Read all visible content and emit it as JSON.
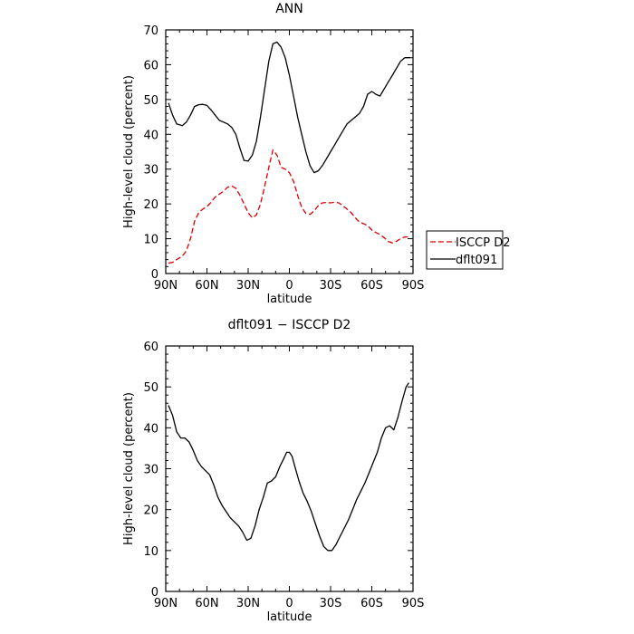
{
  "chart_data": [
    {
      "type": "line",
      "title": "ANN",
      "xlabel": "latitude",
      "ylabel": "High-level cloud (percent)",
      "xlim": [
        90,
        -90
      ],
      "ylim": [
        0,
        70
      ],
      "x_ticks": [
        90,
        60,
        30,
        0,
        -30,
        -60,
        -90
      ],
      "x_tick_labels": [
        "90N",
        "60N",
        "30N",
        "0",
        "30S",
        "60S",
        "90S"
      ],
      "y_ticks": [
        0,
        10,
        20,
        30,
        40,
        50,
        60,
        70
      ],
      "y_tick_labels": [
        "0",
        "10",
        "20",
        "30",
        "40",
        "50",
        "60",
        "70"
      ],
      "legend": {
        "position": "right",
        "entries": [
          "ISCCP D2",
          "dflt091"
        ]
      },
      "series": [
        {
          "name": "ISCCP D2",
          "color": "#e00000",
          "style": "dashed",
          "x": [
            88,
            85,
            82,
            78,
            75,
            72,
            69,
            66,
            63,
            60,
            57,
            54,
            51,
            48,
            45,
            42,
            39,
            36,
            33,
            30,
            27,
            24,
            21,
            18,
            15,
            12,
            9,
            6,
            3,
            0,
            -3,
            -6,
            -9,
            -12,
            -15,
            -18,
            -21,
            -24,
            -27,
            -30,
            -33,
            -36,
            -39,
            -42,
            -45,
            -48,
            -51,
            -54,
            -57,
            -60,
            -63,
            -66,
            -69,
            -72,
            -75,
            -78,
            -81,
            -84,
            -86,
            -88
          ],
          "y": [
            3.0,
            3.2,
            4.0,
            5.0,
            6.5,
            10.0,
            15.0,
            17.5,
            18.5,
            19.2,
            20.5,
            22.0,
            22.8,
            23.6,
            24.8,
            25.2,
            24.5,
            22.5,
            20.0,
            17.5,
            16.0,
            16.8,
            20.0,
            25.0,
            30.5,
            35.5,
            34.0,
            30.5,
            30.0,
            29.0,
            26.5,
            22.5,
            19.0,
            17.3,
            17.0,
            18.0,
            19.5,
            20.3,
            20.4,
            20.3,
            20.5,
            20.3,
            19.5,
            18.5,
            17.5,
            16.0,
            14.8,
            14.3,
            13.8,
            12.5,
            11.8,
            11.2,
            10.3,
            9.2,
            8.8,
            9.3,
            10.0,
            10.5,
            10.5,
            10.5
          ]
        },
        {
          "name": "dflt091",
          "color": "#000000",
          "style": "solid",
          "x": [
            88,
            85,
            82,
            78,
            75,
            72,
            69,
            66,
            63,
            60,
            57,
            54,
            51,
            48,
            45,
            42,
            39,
            36,
            33,
            30,
            27,
            24,
            21,
            18,
            15,
            12,
            9,
            6,
            3,
            0,
            -3,
            -6,
            -9,
            -12,
            -15,
            -18,
            -21,
            -24,
            -27,
            -30,
            -33,
            -36,
            -39,
            -42,
            -45,
            -48,
            -51,
            -54,
            -57,
            -60,
            -63,
            -66,
            -69,
            -72,
            -75,
            -78,
            -81,
            -84,
            -86,
            -88
          ],
          "y": [
            49.0,
            45.5,
            43.0,
            42.5,
            43.5,
            45.5,
            48.0,
            48.5,
            48.6,
            48.3,
            47.0,
            45.5,
            44.0,
            43.5,
            43.0,
            42.0,
            40.0,
            36.0,
            32.5,
            32.3,
            34.0,
            38.0,
            45.0,
            53.0,
            61.0,
            66.0,
            66.5,
            65.0,
            62.0,
            57.0,
            51.0,
            45.0,
            40.0,
            35.0,
            31.0,
            29.0,
            29.5,
            31.0,
            33.0,
            35.0,
            37.0,
            39.0,
            41.0,
            43.0,
            44.0,
            45.0,
            46.0,
            48.0,
            51.5,
            52.3,
            51.5,
            51.0,
            53.0,
            55.0,
            57.0,
            59.0,
            61.0,
            62.0,
            62.0,
            62.0
          ]
        }
      ]
    },
    {
      "type": "line",
      "title": "dflt091 − ISCCP D2",
      "xlabel": "latitude",
      "ylabel": "High-level cloud (percent)",
      "xlim": [
        90,
        -90
      ],
      "ylim": [
        0,
        60
      ],
      "x_ticks": [
        90,
        60,
        30,
        0,
        -30,
        -60,
        -90
      ],
      "x_tick_labels": [
        "90N",
        "60N",
        "30N",
        "0",
        "30S",
        "60S",
        "90S"
      ],
      "y_ticks": [
        0,
        10,
        20,
        30,
        40,
        50,
        60
      ],
      "y_tick_labels": [
        "0",
        "10",
        "20",
        "30",
        "40",
        "50",
        "60"
      ],
      "series": [
        {
          "color": "#000000",
          "style": "solid",
          "x": [
            88,
            85,
            82,
            79,
            76,
            73,
            70,
            67,
            64,
            61,
            58,
            55,
            52,
            49,
            46,
            43,
            40,
            37,
            34,
            31,
            28,
            25,
            22,
            19,
            16,
            13,
            10,
            7,
            4,
            2,
            0,
            -2,
            -4,
            -7,
            -10,
            -13,
            -16,
            -19,
            -22,
            -25,
            -28,
            -31,
            -34,
            -37,
            -40,
            -43,
            -46,
            -49,
            -52,
            -55,
            -58,
            -61,
            -64,
            -67,
            -70,
            -73,
            -76,
            -79,
            -82,
            -85,
            -87
          ],
          "y": [
            45.5,
            43.0,
            39.0,
            37.5,
            37.5,
            36.5,
            34.5,
            32.0,
            30.5,
            29.5,
            28.5,
            26.0,
            23.0,
            21.0,
            19.5,
            18.0,
            17.0,
            16.0,
            14.5,
            12.5,
            13.0,
            16.0,
            20.0,
            23.0,
            26.5,
            27.0,
            28.0,
            30.5,
            32.5,
            34.0,
            34.0,
            33.0,
            30.5,
            27.0,
            24.0,
            22.0,
            19.5,
            16.5,
            13.5,
            11.0,
            10.0,
            10.0,
            11.5,
            13.5,
            15.5,
            17.5,
            20.0,
            22.5,
            24.5,
            26.5,
            29.0,
            31.5,
            34.0,
            37.5,
            40.0,
            40.5,
            39.5,
            42.5,
            46.5,
            50.0,
            51.0
          ]
        }
      ]
    }
  ]
}
